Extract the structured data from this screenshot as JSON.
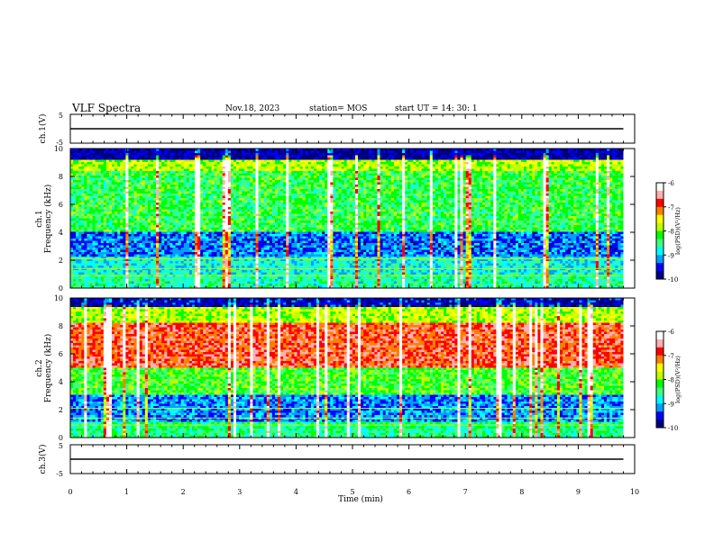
{
  "header": {
    "title": "VLF Spectra",
    "date": "Nov.18, 2023",
    "station": "station= MOS",
    "start": "start  UT =   14: 30: 1"
  },
  "chart_data": [
    {
      "type": "line",
      "ylabel": "ch.1(V)",
      "ylim": [
        -5,
        5
      ],
      "yticks": [
        "5",
        "-5"
      ],
      "xlim": [
        0,
        10
      ],
      "series": [
        {
          "x": [
            0,
            9.8
          ],
          "y": [
            0,
            0
          ]
        }
      ]
    },
    {
      "type": "heatmap",
      "ylabel": "ch.1\nFrequency (kHz)",
      "ylim": [
        0,
        10
      ],
      "yticks": [
        "0",
        "2",
        "4",
        "6",
        "8",
        "10"
      ],
      "xlim": [
        0,
        10
      ],
      "data_xmax": 9.8,
      "colorbar": {
        "label": "log(PSD)(V²/Hz)",
        "range": [
          -10,
          -6
        ],
        "ticks": [
          "-6",
          "-7",
          "-8",
          "-9",
          "-10"
        ]
      }
    },
    {
      "type": "heatmap",
      "ylabel": "ch.2\nFrequency (kHz)",
      "ylim": [
        0,
        10
      ],
      "yticks": [
        "0",
        "2",
        "4",
        "6",
        "8",
        "10"
      ],
      "xlim": [
        0,
        10
      ],
      "data_xmax": 9.8,
      "colorbar": {
        "label": "log(PSD)(V²/Hz)",
        "range": [
          -10,
          -6
        ],
        "ticks": [
          "-6",
          "-7",
          "-8",
          "-9",
          "-10"
        ]
      }
    },
    {
      "type": "line",
      "ylabel": "ch.3(V)",
      "ylim": [
        -5,
        5
      ],
      "yticks": [
        "5",
        "-5"
      ],
      "xlim": [
        0,
        10
      ],
      "xlabel": "Time (min)",
      "xticks": [
        "0",
        "1",
        "2",
        "3",
        "4",
        "5",
        "6",
        "7",
        "8",
        "9",
        "10"
      ],
      "series": [
        {
          "x": [
            0,
            9.8
          ],
          "y": [
            0,
            0
          ]
        }
      ]
    }
  ],
  "colors": {
    "colormap": [
      "#00007f",
      "#0000ff",
      "#00a0ff",
      "#00ffff",
      "#40ff80",
      "#00ff00",
      "#c0ff00",
      "#ffff00",
      "#ff8000",
      "#ff0000",
      "#ffb0b0",
      "#ffffff"
    ]
  }
}
